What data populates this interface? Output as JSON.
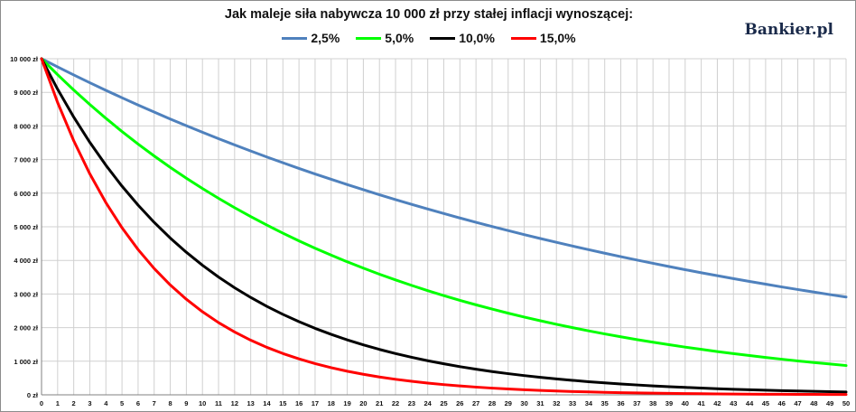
{
  "brand": "Bankier.pl",
  "chart_data": {
    "type": "line",
    "title": "Jak maleje siła nabywcza 10 000 zł przy stałej inflacji wynoszącej:",
    "xlabel": "",
    "ylabel": "",
    "grid": true,
    "legend_position": "top-center",
    "x": [
      0,
      1,
      2,
      3,
      4,
      5,
      6,
      7,
      8,
      9,
      10,
      11,
      12,
      13,
      14,
      15,
      16,
      17,
      18,
      19,
      20,
      21,
      22,
      23,
      24,
      25,
      26,
      27,
      28,
      29,
      30,
      31,
      32,
      33,
      34,
      35,
      36,
      37,
      38,
      39,
      40,
      41,
      42,
      43,
      44,
      45,
      46,
      47,
      48,
      49,
      50
    ],
    "ylim": [
      0,
      10000
    ],
    "y_ticks": [
      0,
      1000,
      2000,
      3000,
      4000,
      5000,
      6000,
      7000,
      8000,
      9000,
      10000
    ],
    "y_tick_labels": [
      "0 zł",
      "1 000 zł",
      "2 000 zł",
      "3 000 zł",
      "4 000 zł",
      "5 000 zł",
      "6 000 zł",
      "7 000 zł",
      "8 000 zł",
      "9 000 zł",
      "10 000 zł"
    ],
    "series": [
      {
        "name": "2,5%",
        "color": "#4f81bd",
        "values": [
          10000,
          9756,
          9518,
          9286,
          9060,
          8839,
          8623,
          8413,
          8207,
          8007,
          7812,
          7621,
          7436,
          7254,
          7077,
          6905,
          6736,
          6572,
          6412,
          6255,
          6103,
          5954,
          5809,
          5667,
          5529,
          5394,
          5262,
          5134,
          5009,
          4887,
          4767,
          4651,
          4538,
          4427,
          4319,
          4214,
          4111,
          4011,
          3913,
          3817,
          3724,
          3633,
          3545,
          3458,
          3374,
          3292,
          3211,
          3133,
          3057,
          2982,
          2909
        ]
      },
      {
        "name": "5,0%",
        "color": "#00ff00",
        "values": [
          10000,
          9524,
          9070,
          8638,
          8227,
          7835,
          7462,
          7107,
          6768,
          6446,
          6139,
          5847,
          5568,
          5303,
          5051,
          4810,
          4581,
          4363,
          4155,
          3957,
          3769,
          3589,
          3418,
          3256,
          3101,
          2953,
          2812,
          2678,
          2551,
          2429,
          2314,
          2204,
          2099,
          1999,
          1904,
          1813,
          1727,
          1644,
          1566,
          1491,
          1420,
          1353,
          1288,
          1227,
          1169,
          1113,
          1060,
          1009,
          961,
          916,
          872
        ]
      },
      {
        "name": "10,0%",
        "color": "#000000",
        "values": [
          10000,
          9091,
          8264,
          7513,
          6830,
          6209,
          5645,
          5132,
          4665,
          4241,
          3855,
          3505,
          3186,
          2897,
          2633,
          2394,
          2176,
          1978,
          1799,
          1635,
          1486,
          1351,
          1228,
          1117,
          1015,
          923,
          839,
          763,
          693,
          630,
          573,
          521,
          474,
          431,
          391,
          356,
          323,
          294,
          267,
          243,
          221,
          201,
          183,
          166,
          151,
          137,
          125,
          113,
          103,
          94,
          85
        ]
      },
      {
        "name": "15,0%",
        "color": "#ff0000",
        "values": [
          10000,
          8696,
          7561,
          6575,
          5718,
          4972,
          4323,
          3759,
          3269,
          2843,
          2472,
          2149,
          1869,
          1625,
          1413,
          1229,
          1069,
          929,
          808,
          703,
          611,
          531,
          462,
          402,
          349,
          304,
          264,
          230,
          200,
          174,
          151,
          131,
          114,
          99,
          86,
          75,
          65,
          57,
          49,
          43,
          37,
          32,
          28,
          24,
          21,
          18,
          16,
          14,
          12,
          11,
          9
        ]
      }
    ]
  }
}
